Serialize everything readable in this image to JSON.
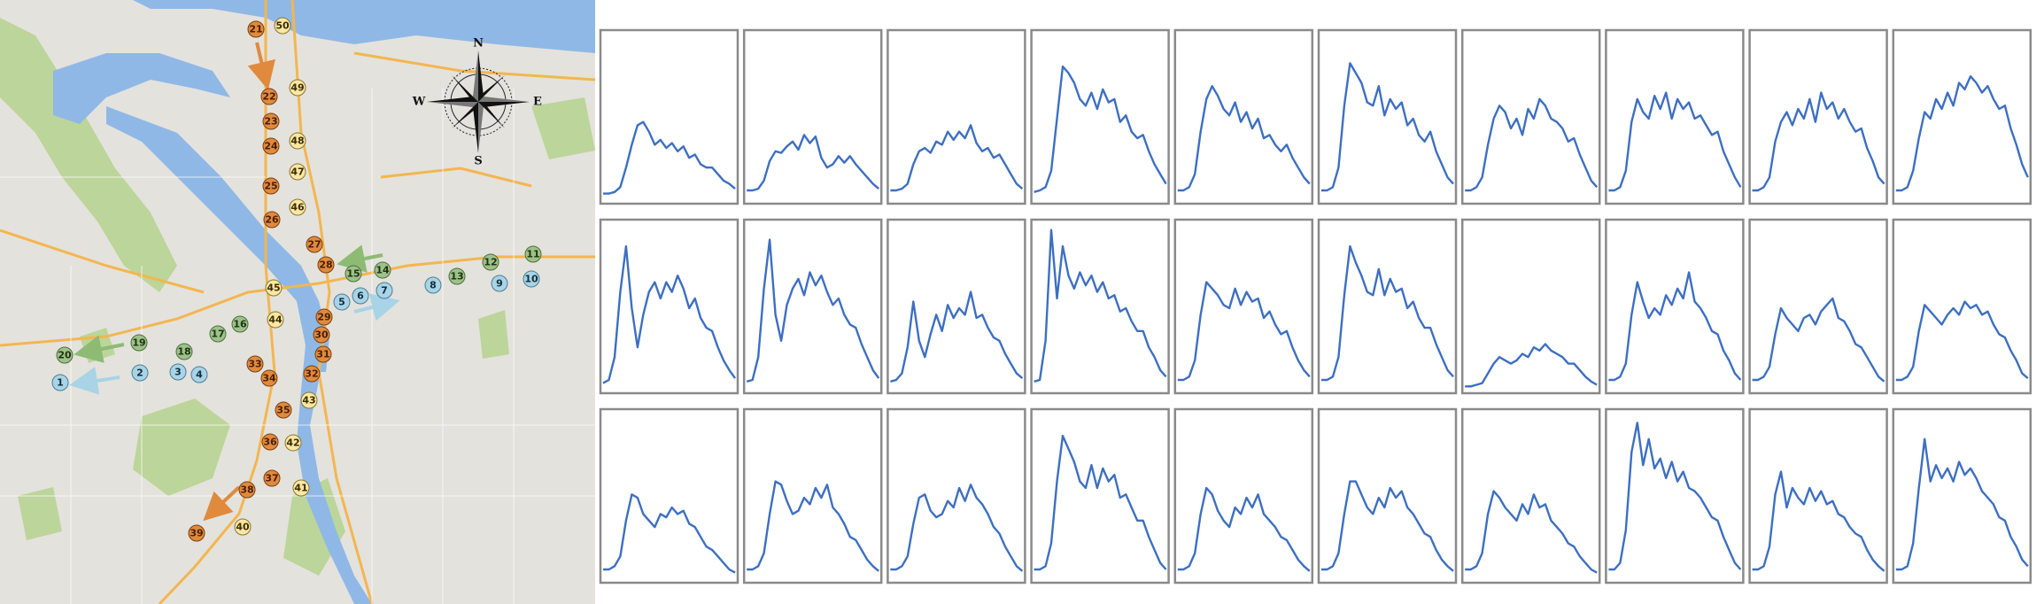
{
  "colors": {
    "map_background": "#e4e2dd",
    "water": "#8fb8e6",
    "park": "#bcd59a",
    "road": "#f3b650",
    "route_orange": "#e08a3e",
    "route_yellow": "#fbe7a2",
    "route_green": "#9dc18a",
    "route_blue": "#a9d3e6",
    "series_line": "#3d6fc2",
    "panel_border": "#8a8a8a"
  },
  "map": {
    "compass": {
      "north": "N",
      "south": "S",
      "east": "E",
      "west": "W"
    },
    "stations_orange": [
      "21",
      "22",
      "23",
      "24",
      "25",
      "26",
      "27",
      "28",
      "29",
      "30",
      "31",
      "32",
      "33",
      "34",
      "35",
      "36",
      "37",
      "38",
      "39"
    ],
    "stations_yellow": [
      "50",
      "49",
      "48",
      "47",
      "46",
      "45",
      "44",
      "43",
      "42",
      "41",
      "40"
    ],
    "stations_green": [
      "11",
      "12",
      "13",
      "14",
      "15",
      "16",
      "17",
      "18",
      "19",
      "20"
    ],
    "stations_blue": [
      "1",
      "2",
      "3",
      "4",
      "5",
      "6",
      "7",
      "8",
      "9",
      "10"
    ]
  },
  "chart_data": {
    "type": "line",
    "title": "",
    "xlabel": "",
    "ylabel": "",
    "ylim": [
      0,
      1
    ],
    "layout": "3x10 small multiples",
    "series": [
      {
        "name": "r1c1",
        "values": [
          0.04,
          0.04,
          0.05,
          0.08,
          0.2,
          0.34,
          0.46,
          0.48,
          0.42,
          0.34,
          0.37,
          0.32,
          0.35,
          0.3,
          0.33,
          0.26,
          0.28,
          0.22,
          0.2,
          0.2,
          0.16,
          0.12,
          0.1,
          0.07
        ]
      },
      {
        "name": "r1c2",
        "values": [
          0.06,
          0.06,
          0.07,
          0.12,
          0.24,
          0.3,
          0.29,
          0.33,
          0.36,
          0.31,
          0.4,
          0.35,
          0.39,
          0.26,
          0.2,
          0.22,
          0.27,
          0.23,
          0.27,
          0.22,
          0.18,
          0.14,
          0.1,
          0.07
        ]
      },
      {
        "name": "r1c3",
        "values": [
          0.06,
          0.06,
          0.07,
          0.1,
          0.22,
          0.3,
          0.32,
          0.29,
          0.36,
          0.34,
          0.42,
          0.37,
          0.42,
          0.38,
          0.46,
          0.35,
          0.3,
          0.32,
          0.26,
          0.28,
          0.22,
          0.16,
          0.1,
          0.07
        ]
      },
      {
        "name": "r1c4",
        "values": [
          0.05,
          0.06,
          0.08,
          0.18,
          0.5,
          0.82,
          0.78,
          0.72,
          0.62,
          0.58,
          0.66,
          0.56,
          0.68,
          0.6,
          0.62,
          0.48,
          0.52,
          0.42,
          0.38,
          0.4,
          0.3,
          0.22,
          0.16,
          0.1
        ]
      },
      {
        "name": "r1c5",
        "values": [
          0.06,
          0.06,
          0.08,
          0.16,
          0.42,
          0.62,
          0.7,
          0.64,
          0.56,
          0.52,
          0.6,
          0.48,
          0.54,
          0.44,
          0.5,
          0.38,
          0.4,
          0.34,
          0.3,
          0.34,
          0.26,
          0.2,
          0.14,
          0.1
        ]
      },
      {
        "name": "r1c6",
        "values": [
          0.06,
          0.06,
          0.08,
          0.2,
          0.58,
          0.84,
          0.78,
          0.72,
          0.6,
          0.58,
          0.7,
          0.52,
          0.62,
          0.56,
          0.6,
          0.46,
          0.5,
          0.4,
          0.36,
          0.42,
          0.3,
          0.22,
          0.14,
          0.1
        ]
      },
      {
        "name": "r1c7",
        "values": [
          0.06,
          0.06,
          0.08,
          0.14,
          0.34,
          0.5,
          0.58,
          0.54,
          0.44,
          0.5,
          0.4,
          0.56,
          0.5,
          0.62,
          0.58,
          0.5,
          0.48,
          0.44,
          0.36,
          0.38,
          0.28,
          0.2,
          0.12,
          0.08
        ]
      },
      {
        "name": "r1c8",
        "values": [
          0.06,
          0.06,
          0.08,
          0.18,
          0.48,
          0.62,
          0.54,
          0.5,
          0.64,
          0.56,
          0.66,
          0.5,
          0.62,
          0.56,
          0.6,
          0.5,
          0.52,
          0.46,
          0.4,
          0.42,
          0.3,
          0.22,
          0.14,
          0.08
        ]
      },
      {
        "name": "r1c9",
        "values": [
          0.06,
          0.06,
          0.08,
          0.14,
          0.36,
          0.48,
          0.54,
          0.46,
          0.56,
          0.5,
          0.62,
          0.48,
          0.66,
          0.56,
          0.6,
          0.5,
          0.56,
          0.48,
          0.42,
          0.44,
          0.32,
          0.24,
          0.14,
          0.1
        ]
      },
      {
        "name": "r1c10",
        "values": [
          0.06,
          0.06,
          0.08,
          0.18,
          0.38,
          0.54,
          0.5,
          0.62,
          0.56,
          0.66,
          0.58,
          0.72,
          0.68,
          0.76,
          0.72,
          0.66,
          0.7,
          0.62,
          0.56,
          0.58,
          0.44,
          0.34,
          0.22,
          0.14
        ]
      },
      {
        "name": "r2c1",
        "values": [
          0.04,
          0.06,
          0.2,
          0.6,
          0.88,
          0.5,
          0.26,
          0.46,
          0.6,
          0.66,
          0.56,
          0.66,
          0.6,
          0.7,
          0.62,
          0.5,
          0.56,
          0.44,
          0.38,
          0.36,
          0.26,
          0.18,
          0.12,
          0.07
        ]
      },
      {
        "name": "r2c2",
        "values": [
          0.05,
          0.06,
          0.2,
          0.62,
          0.92,
          0.46,
          0.3,
          0.52,
          0.62,
          0.68,
          0.58,
          0.72,
          0.64,
          0.7,
          0.6,
          0.52,
          0.56,
          0.46,
          0.4,
          0.38,
          0.28,
          0.2,
          0.12,
          0.07
        ]
      },
      {
        "name": "r2c3",
        "values": [
          0.05,
          0.06,
          0.1,
          0.26,
          0.54,
          0.3,
          0.2,
          0.34,
          0.46,
          0.36,
          0.52,
          0.44,
          0.5,
          0.46,
          0.6,
          0.44,
          0.46,
          0.38,
          0.32,
          0.3,
          0.22,
          0.16,
          0.1,
          0.07
        ]
      },
      {
        "name": "r2c4",
        "values": [
          0.05,
          0.06,
          0.3,
          0.98,
          0.56,
          0.88,
          0.7,
          0.62,
          0.72,
          0.64,
          0.7,
          0.6,
          0.66,
          0.56,
          0.58,
          0.48,
          0.5,
          0.42,
          0.36,
          0.36,
          0.26,
          0.2,
          0.12,
          0.08
        ]
      },
      {
        "name": "r2c5",
        "values": [
          0.06,
          0.06,
          0.08,
          0.18,
          0.46,
          0.66,
          0.62,
          0.58,
          0.52,
          0.5,
          0.62,
          0.52,
          0.6,
          0.54,
          0.56,
          0.44,
          0.48,
          0.4,
          0.34,
          0.36,
          0.26,
          0.18,
          0.12,
          0.08
        ]
      },
      {
        "name": "r2c6",
        "values": [
          0.06,
          0.06,
          0.08,
          0.2,
          0.58,
          0.88,
          0.78,
          0.7,
          0.6,
          0.58,
          0.74,
          0.58,
          0.68,
          0.6,
          0.62,
          0.5,
          0.54,
          0.44,
          0.38,
          0.38,
          0.28,
          0.2,
          0.12,
          0.08
        ]
      },
      {
        "name": "r2c7",
        "values": [
          0.02,
          0.02,
          0.03,
          0.04,
          0.1,
          0.16,
          0.2,
          0.18,
          0.16,
          0.18,
          0.22,
          0.2,
          0.26,
          0.24,
          0.28,
          0.24,
          0.22,
          0.2,
          0.16,
          0.16,
          0.12,
          0.08,
          0.05,
          0.03
        ]
      },
      {
        "name": "r2c8",
        "values": [
          0.06,
          0.06,
          0.08,
          0.16,
          0.46,
          0.66,
          0.54,
          0.44,
          0.5,
          0.46,
          0.58,
          0.52,
          0.62,
          0.56,
          0.72,
          0.54,
          0.5,
          0.44,
          0.36,
          0.34,
          0.24,
          0.18,
          0.1,
          0.06
        ]
      },
      {
        "name": "r2c9",
        "values": [
          0.06,
          0.06,
          0.08,
          0.14,
          0.34,
          0.5,
          0.44,
          0.4,
          0.36,
          0.44,
          0.46,
          0.4,
          0.48,
          0.52,
          0.56,
          0.44,
          0.42,
          0.36,
          0.28,
          0.26,
          0.2,
          0.14,
          0.08,
          0.05
        ]
      },
      {
        "name": "r2c10",
        "values": [
          0.06,
          0.06,
          0.08,
          0.14,
          0.36,
          0.52,
          0.48,
          0.44,
          0.4,
          0.46,
          0.5,
          0.46,
          0.54,
          0.5,
          0.52,
          0.46,
          0.48,
          0.4,
          0.34,
          0.32,
          0.24,
          0.18,
          0.1,
          0.07
        ]
      },
      {
        "name": "r3c1",
        "values": [
          0.06,
          0.06,
          0.08,
          0.14,
          0.36,
          0.52,
          0.5,
          0.4,
          0.36,
          0.32,
          0.4,
          0.38,
          0.44,
          0.4,
          0.42,
          0.34,
          0.32,
          0.26,
          0.2,
          0.18,
          0.14,
          0.1,
          0.06,
          0.04
        ]
      },
      {
        "name": "r3c2",
        "values": [
          0.06,
          0.06,
          0.08,
          0.16,
          0.4,
          0.6,
          0.58,
          0.48,
          0.4,
          0.42,
          0.5,
          0.46,
          0.56,
          0.5,
          0.58,
          0.44,
          0.4,
          0.34,
          0.26,
          0.24,
          0.18,
          0.12,
          0.08,
          0.05
        ]
      },
      {
        "name": "r3c3",
        "values": [
          0.06,
          0.06,
          0.08,
          0.14,
          0.34,
          0.5,
          0.52,
          0.42,
          0.38,
          0.4,
          0.48,
          0.44,
          0.56,
          0.48,
          0.58,
          0.5,
          0.46,
          0.4,
          0.32,
          0.28,
          0.2,
          0.14,
          0.08,
          0.05
        ]
      },
      {
        "name": "r3c4",
        "values": [
          0.06,
          0.06,
          0.08,
          0.22,
          0.6,
          0.88,
          0.8,
          0.72,
          0.6,
          0.56,
          0.7,
          0.56,
          0.68,
          0.6,
          0.64,
          0.5,
          0.52,
          0.44,
          0.36,
          0.36,
          0.26,
          0.18,
          0.1,
          0.06
        ]
      },
      {
        "name": "r3c5",
        "values": [
          0.06,
          0.06,
          0.08,
          0.16,
          0.4,
          0.56,
          0.52,
          0.42,
          0.36,
          0.32,
          0.44,
          0.4,
          0.5,
          0.44,
          0.52,
          0.4,
          0.36,
          0.32,
          0.26,
          0.24,
          0.18,
          0.12,
          0.08,
          0.05
        ]
      },
      {
        "name": "r3c6",
        "values": [
          0.06,
          0.06,
          0.08,
          0.16,
          0.4,
          0.6,
          0.6,
          0.52,
          0.44,
          0.4,
          0.5,
          0.44,
          0.56,
          0.5,
          0.54,
          0.44,
          0.4,
          0.34,
          0.28,
          0.26,
          0.18,
          0.12,
          0.08,
          0.05
        ]
      },
      {
        "name": "r3c7",
        "values": [
          0.06,
          0.06,
          0.08,
          0.16,
          0.4,
          0.54,
          0.5,
          0.44,
          0.4,
          0.36,
          0.46,
          0.4,
          0.52,
          0.44,
          0.46,
          0.36,
          0.32,
          0.28,
          0.22,
          0.2,
          0.14,
          0.1,
          0.06,
          0.04
        ]
      },
      {
        "name": "r3c8",
        "values": [
          0.06,
          0.06,
          0.1,
          0.3,
          0.78,
          0.96,
          0.7,
          0.86,
          0.68,
          0.74,
          0.62,
          0.72,
          0.6,
          0.66,
          0.56,
          0.54,
          0.5,
          0.44,
          0.38,
          0.36,
          0.26,
          0.18,
          0.1,
          0.06
        ]
      },
      {
        "name": "r3c9",
        "values": [
          0.06,
          0.06,
          0.08,
          0.2,
          0.52,
          0.66,
          0.44,
          0.56,
          0.5,
          0.46,
          0.56,
          0.48,
          0.54,
          0.46,
          0.48,
          0.4,
          0.38,
          0.32,
          0.28,
          0.26,
          0.18,
          0.12,
          0.08,
          0.05
        ]
      },
      {
        "name": "r3c10",
        "values": [
          0.06,
          0.06,
          0.08,
          0.22,
          0.56,
          0.86,
          0.6,
          0.7,
          0.62,
          0.68,
          0.6,
          0.72,
          0.64,
          0.68,
          0.62,
          0.54,
          0.5,
          0.46,
          0.38,
          0.36,
          0.26,
          0.2,
          0.12,
          0.08
        ]
      }
    ]
  }
}
